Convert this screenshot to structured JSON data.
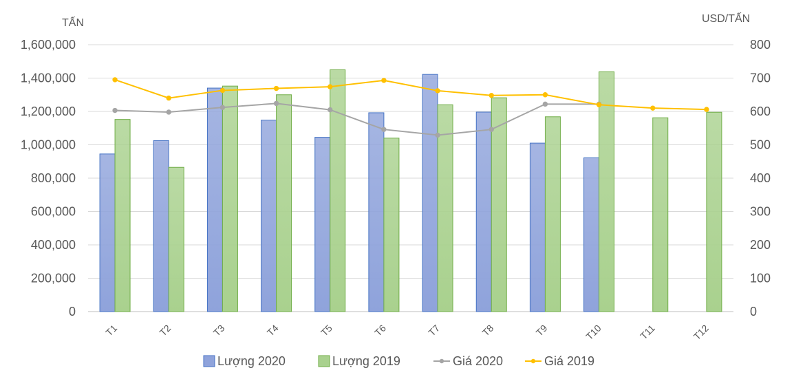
{
  "chart_data": {
    "type": "bar",
    "categories": [
      "T1",
      "T2",
      "T3",
      "T4",
      "T5",
      "T6",
      "T7",
      "T8",
      "T9",
      "T10",
      "T11",
      "T12"
    ],
    "left_axis": {
      "unit": "TẤN",
      "ylim": [
        0,
        1600000
      ],
      "ticks": [
        "0",
        "200,000",
        "400,000",
        "600,000",
        "800,000",
        "1,000,000",
        "1,200,000",
        "1,400,000",
        "1,600,000"
      ]
    },
    "right_axis": {
      "unit": "USD/TẤN",
      "ylim": [
        0,
        800
      ],
      "ticks": [
        "0",
        "100",
        "200",
        "300",
        "400",
        "500",
        "600",
        "700",
        "800"
      ]
    },
    "series": [
      {
        "name": "Lượng 2020",
        "kind": "bar",
        "axis": "left",
        "color": "#8FA3DB",
        "values": [
          945000,
          1025000,
          1340000,
          1148000,
          1045000,
          1192000,
          1422000,
          1196000,
          1010000,
          922000,
          null,
          null
        ]
      },
      {
        "name": "Lượng 2019",
        "kind": "bar",
        "axis": "left",
        "color": "#A9D18E",
        "values": [
          1152000,
          865000,
          1352000,
          1300000,
          1450000,
          1040000,
          1240000,
          1282000,
          1168000,
          1438000,
          1162000,
          1195000
        ]
      },
      {
        "name": "Giá 2020",
        "kind": "line",
        "axis": "right",
        "color": "#A5A5A5",
        "values": [
          603,
          598,
          612,
          624,
          605,
          546,
          529,
          546,
          622,
          622,
          null,
          null
        ]
      },
      {
        "name": "Giá 2019",
        "kind": "line",
        "axis": "right",
        "color": "#FFC000",
        "values": [
          695,
          640,
          663,
          669,
          674,
          693,
          662,
          648,
          650,
          620,
          610,
          606
        ]
      }
    ],
    "grid": true,
    "legend": "bottom"
  }
}
